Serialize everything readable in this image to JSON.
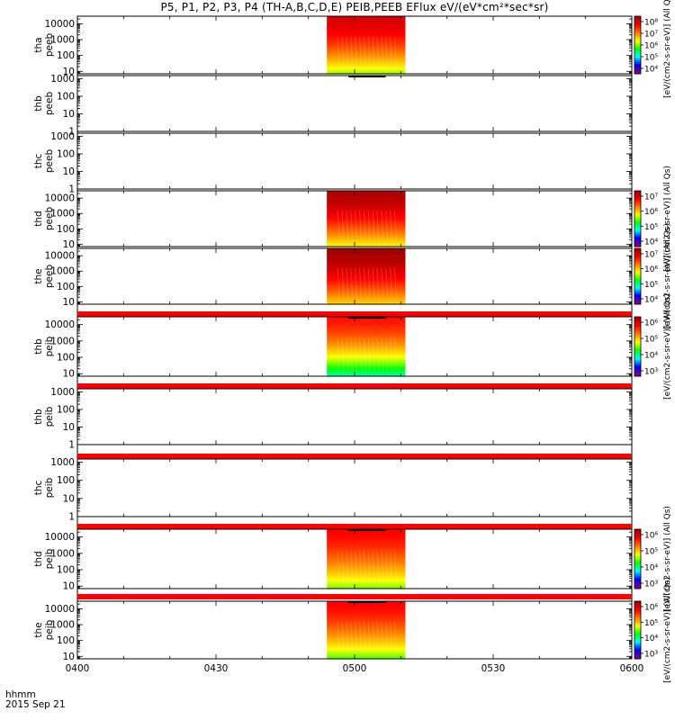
{
  "title": "P5, P1, P2, P3, P4 (TH-A,B,C,D,E) PEIB,PEEB EFlux eV/(eV*cm²*sec*sr)",
  "footer": {
    "time_label": "hhmm",
    "date_label": "2015 Sep 21"
  },
  "colors": {
    "frame": "#000000",
    "spectrogram_scale": [
      "#ffffff",
      "#800080",
      "#0000ff",
      "#00ffff",
      "#00ff00",
      "#ffff00",
      "#ff8000",
      "#ff0000",
      "#a00000"
    ],
    "sc_flag_bar": "#ff0000"
  },
  "chart_data": {
    "type": "heatmap",
    "x_axis": {
      "range": [
        "0400",
        "0600"
      ],
      "ticks": [
        "0400",
        "0430",
        "0500",
        "0530",
        "0600"
      ]
    },
    "data_interval": [
      "0454",
      "0511"
    ],
    "panels": [
      {
        "probe": "tha",
        "product": "peeb",
        "ylabel": [
          "tha",
          "peeb"
        ],
        "yticks": [
          "10",
          "100",
          "1000",
          "10000"
        ],
        "ylim": [
          7,
          30000
        ],
        "has_data": true,
        "log_ylim": [
          0.8,
          4.5
        ],
        "intensity_top": 0.92,
        "intensity_bottom": 0.52,
        "colorbar": {
          "ticks": [
            "10⁴",
            "10⁵",
            "10⁶",
            "10⁷",
            "10⁸"
          ],
          "label": "[eV/(cm2-s-sr-eV)] (All Qs)"
        }
      },
      {
        "probe": "thb",
        "product": "peeb",
        "ylabel": [
          "thb",
          "peeb"
        ],
        "yticks": [
          "1",
          "10",
          "100",
          "1000"
        ],
        "ylim": [
          1,
          1500
        ],
        "has_data": false
      },
      {
        "probe": "thc",
        "product": "peeb",
        "ylabel": [
          "thc",
          "peeb"
        ],
        "yticks": [
          "1",
          "10",
          "100",
          "1000"
        ],
        "ylim": [
          1,
          1500
        ],
        "has_data": false
      },
      {
        "probe": "thd",
        "product": "peeb",
        "ylabel": [
          "thd",
          "peeb"
        ],
        "yticks": [
          "10",
          "100",
          "1000",
          "10000"
        ],
        "ylim": [
          7,
          30000
        ],
        "has_data": true,
        "log_ylim": [
          0.8,
          4.5
        ],
        "intensity_top": 0.98,
        "intensity_bottom": 0.58,
        "colorbar": {
          "ticks": [
            "10⁴",
            "10⁵",
            "10⁶",
            "10⁷"
          ],
          "label": "[eV/(cm2-s-sr-eV)] (All Qs)"
        }
      },
      {
        "probe": "the",
        "product": "peeb",
        "ylabel": [
          "the",
          "peeb"
        ],
        "yticks": [
          "10",
          "100",
          "1000",
          "10000"
        ],
        "ylim": [
          7,
          30000
        ],
        "has_data": true,
        "log_ylim": [
          0.8,
          4.5
        ],
        "intensity_top": 1.0,
        "intensity_bottom": 0.62,
        "colorbar": {
          "ticks": [
            "10⁴",
            "10⁵",
            "10⁶",
            "10⁷"
          ],
          "label": "[eV/(cm2-s-sr-eV)] (All Qs)"
        }
      },
      {
        "probe": "thb",
        "product": "peib",
        "ylabel": [
          "thb",
          "peib"
        ],
        "yticks": [
          "10",
          "100",
          "1000",
          "10000"
        ],
        "ylim": [
          7,
          30000
        ],
        "has_data": true,
        "log_ylim": [
          0.8,
          4.5
        ],
        "intensity_top": 0.84,
        "intensity_bottom": 0.34,
        "colorbar": {
          "ticks": [
            "10³",
            "10⁴",
            "10⁵",
            "10⁶"
          ],
          "label": "[eV/(cm2-s-sr-eV)] (All Qs)"
        }
      },
      {
        "probe": "thb",
        "product": "peib",
        "ylabel": [
          "thb",
          "peib"
        ],
        "yticks": [
          "1",
          "10",
          "100",
          "1000"
        ],
        "ylim": [
          1,
          1500
        ],
        "has_data": false
      },
      {
        "probe": "thc",
        "product": "peib",
        "ylabel": [
          "thc",
          "peib"
        ],
        "yticks": [
          "1",
          "10",
          "100",
          "1000"
        ],
        "ylim": [
          1,
          1500
        ],
        "has_data": false
      },
      {
        "probe": "thd",
        "product": "peib",
        "ylabel": [
          "thd",
          "peib"
        ],
        "yticks": [
          "10",
          "100",
          "1000",
          "10000"
        ],
        "ylim": [
          7,
          30000
        ],
        "has_data": true,
        "log_ylim": [
          0.8,
          4.5
        ],
        "intensity_top": 0.86,
        "intensity_bottom": 0.5,
        "colorbar": {
          "ticks": [
            "10³",
            "10⁴",
            "10⁵",
            "10⁶"
          ],
          "label": "[eV/(cm2-s-sr-eV)] (All Qs)"
        }
      },
      {
        "probe": "the",
        "product": "peib",
        "ylabel": [
          "the",
          "peib"
        ],
        "yticks": [
          "10",
          "100",
          "1000",
          "10000"
        ],
        "ylim": [
          7,
          30000
        ],
        "has_data": true,
        "log_ylim": [
          0.8,
          4.5
        ],
        "intensity_top": 0.86,
        "intensity_bottom": 0.48,
        "colorbar": {
          "ticks": [
            "10³",
            "10⁴",
            "10⁵",
            "10⁶"
          ],
          "label": "[eV/(cm2-s-sr-eV)] (All Qs)"
        }
      }
    ]
  }
}
